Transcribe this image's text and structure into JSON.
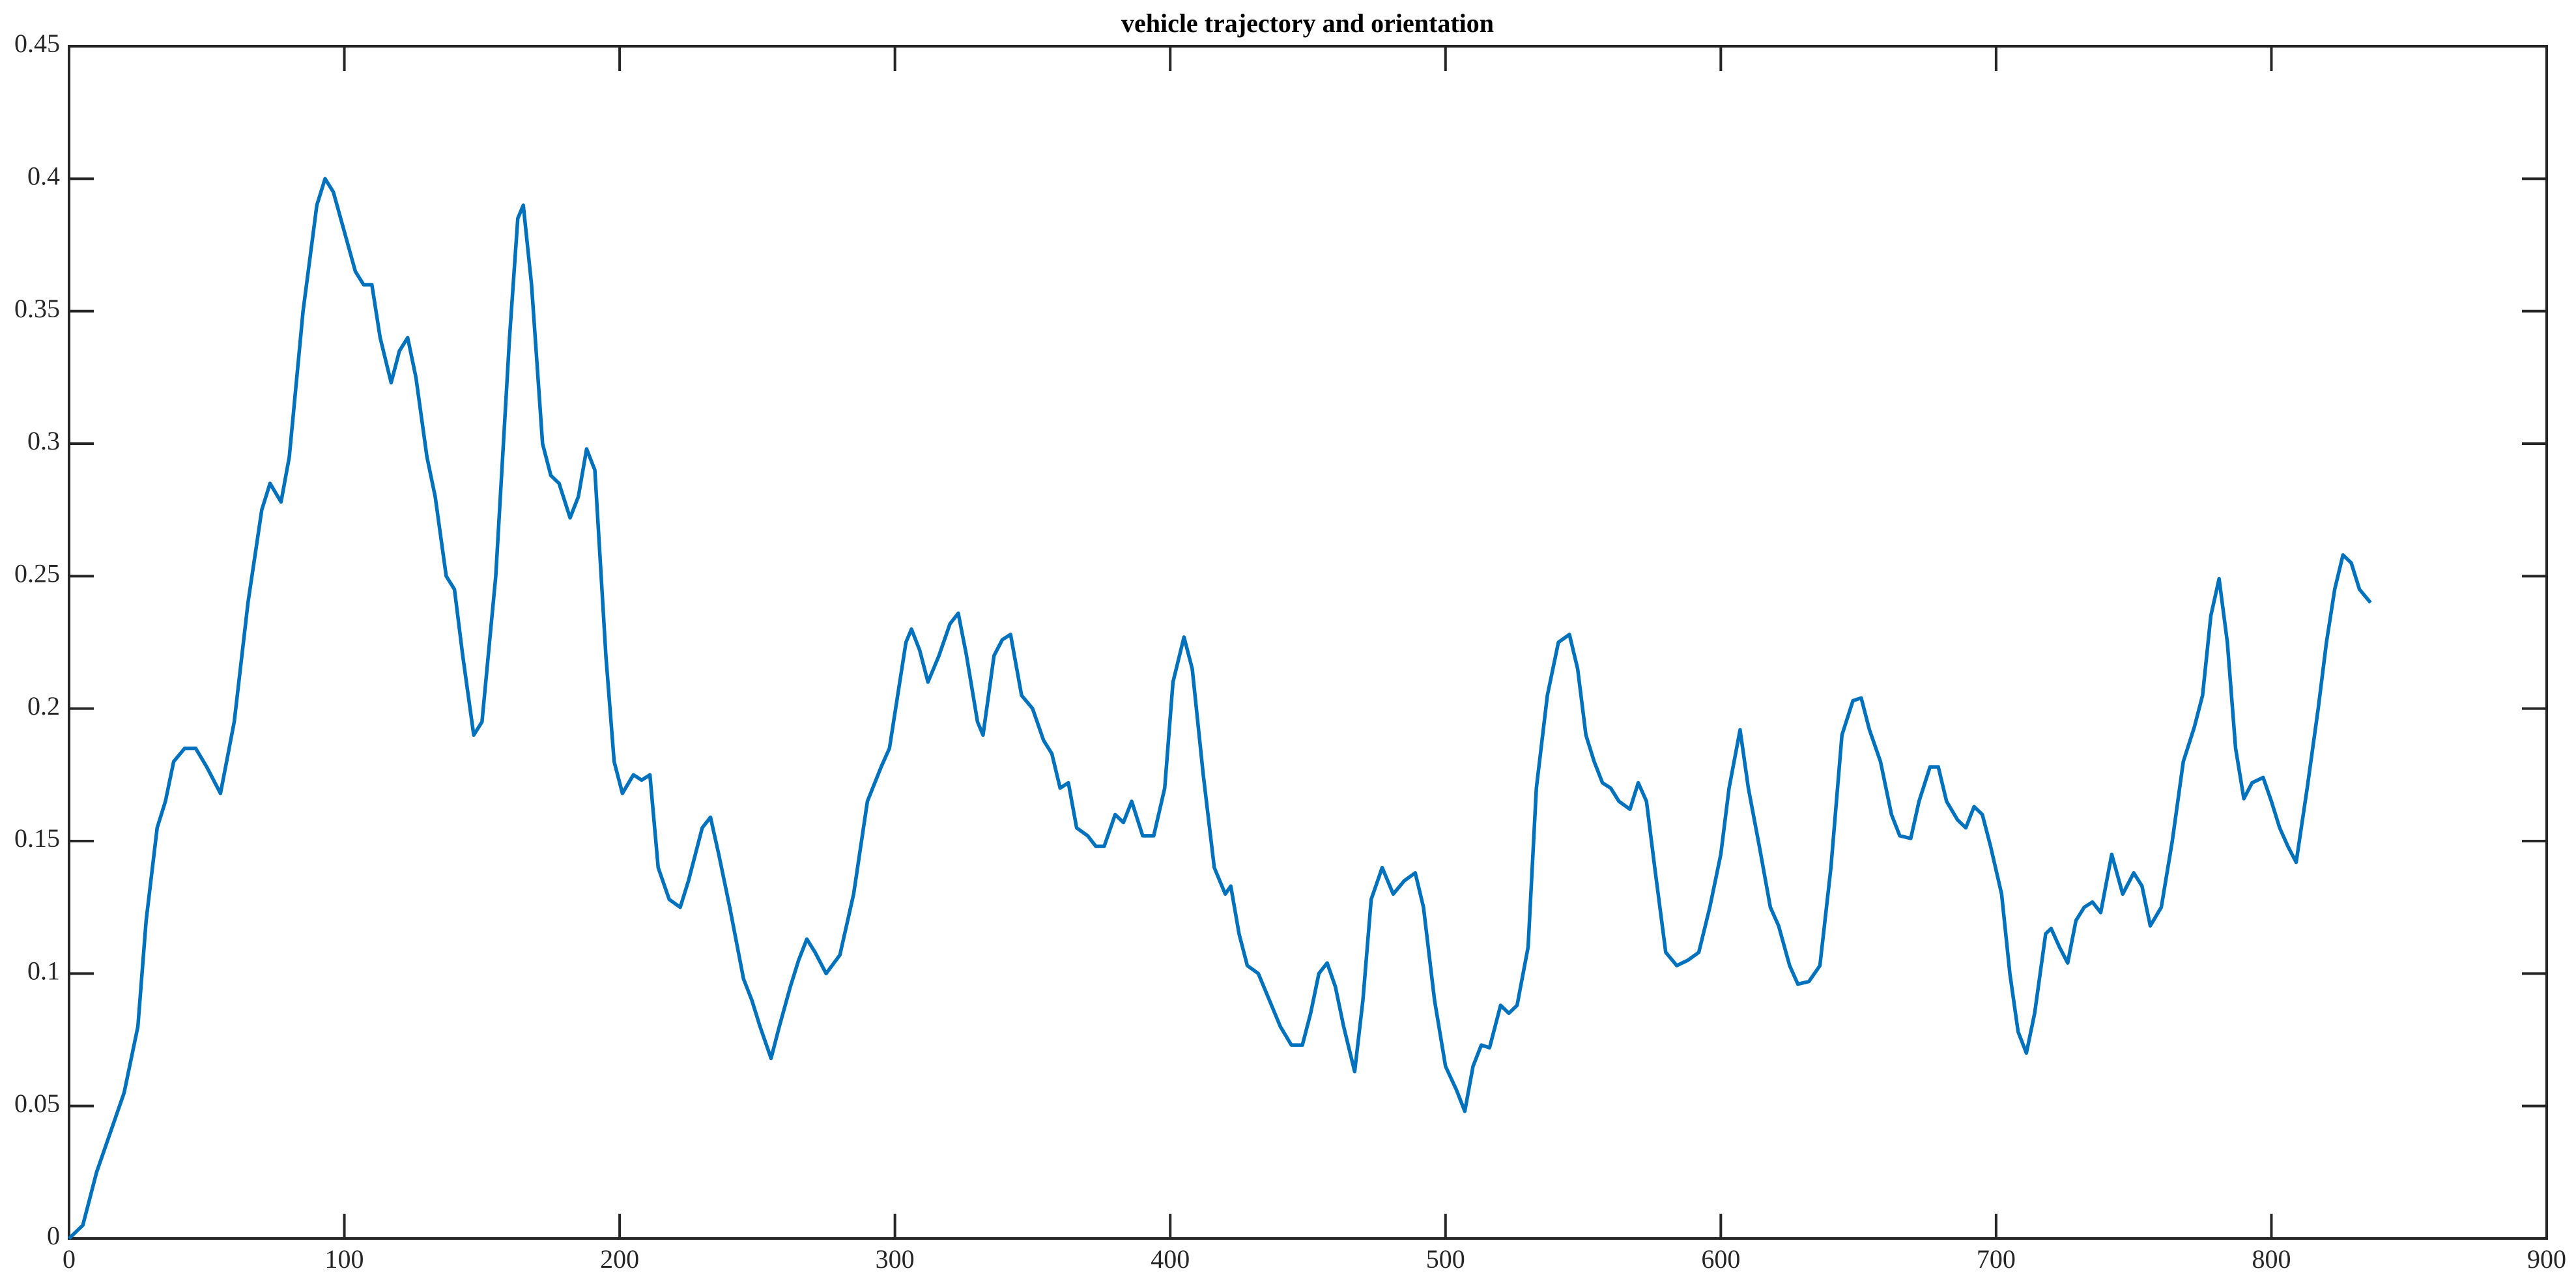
{
  "chart_data": {
    "type": "line",
    "title": "vehicle trajectory and orientation",
    "xlim": [
      0,
      900
    ],
    "xticks": [
      0,
      100,
      200,
      300,
      400,
      500,
      600,
      700,
      800,
      900
    ],
    "ylim": [
      0,
      0.45
    ],
    "yticks": [
      0,
      0.05,
      0.1,
      0.15,
      0.2,
      0.25,
      0.3,
      0.35,
      0.4,
      0.45
    ],
    "grid": false,
    "x": [
      0,
      5,
      10,
      15,
      20,
      25,
      28,
      32,
      35,
      38,
      42,
      46,
      50,
      55,
      60,
      65,
      70,
      73,
      77,
      80,
      85,
      90,
      93,
      96,
      100,
      104,
      107,
      110,
      113,
      117,
      120,
      123,
      126,
      130,
      133,
      137,
      140,
      143,
      147,
      150,
      155,
      160,
      163,
      165,
      168,
      172,
      175,
      178,
      182,
      185,
      188,
      191,
      195,
      198,
      201,
      205,
      208,
      211,
      214,
      218,
      222,
      225,
      230,
      233,
      236,
      240,
      245,
      248,
      251,
      255,
      258,
      262,
      265,
      268,
      271,
      275,
      280,
      285,
      290,
      295,
      298,
      301,
      304,
      306,
      309,
      312,
      316,
      320,
      323,
      326,
      330,
      332,
      336,
      339,
      342,
      346,
      350,
      354,
      357,
      360,
      363,
      366,
      370,
      373,
      376,
      380,
      383,
      386,
      390,
      394,
      398,
      401,
      405,
      408,
      412,
      416,
      420,
      422,
      425,
      428,
      432,
      436,
      440,
      444,
      448,
      451,
      454,
      457,
      460,
      463,
      467,
      470,
      473,
      477,
      481,
      485,
      489,
      492,
      496,
      500,
      504,
      507,
      510,
      513,
      516,
      520,
      523,
      526,
      530,
      533,
      537,
      541,
      545,
      548,
      551,
      554,
      557,
      560,
      563,
      567,
      570,
      573,
      576,
      580,
      584,
      588,
      592,
      596,
      600,
      603,
      607,
      610,
      614,
      618,
      621,
      625,
      628,
      632,
      636,
      640,
      644,
      648,
      651,
      654,
      658,
      662,
      665,
      669,
      672,
      676,
      679,
      682,
      686,
      689,
      692,
      695,
      698,
      702,
      705,
      708,
      711,
      714,
      718,
      720,
      723,
      726,
      729,
      732,
      735,
      738,
      742,
      746,
      750,
      753,
      756,
      760,
      764,
      768,
      772,
      775,
      778,
      781,
      784,
      787,
      790,
      793,
      797,
      800,
      803,
      806,
      809,
      813,
      817,
      820,
      823,
      826,
      829,
      832,
      836
    ],
    "series": [
      {
        "color": "#0072bd",
        "values": [
          0,
          0.005,
          0.025,
          0.04,
          0.055,
          0.08,
          0.12,
          0.155,
          0.165,
          0.18,
          0.185,
          0.185,
          0.178,
          0.168,
          0.195,
          0.24,
          0.275,
          0.285,
          0.278,
          0.295,
          0.35,
          0.39,
          0.4,
          0.395,
          0.38,
          0.365,
          0.36,
          0.36,
          0.34,
          0.323,
          0.335,
          0.34,
          0.325,
          0.295,
          0.28,
          0.25,
          0.245,
          0.22,
          0.19,
          0.195,
          0.25,
          0.34,
          0.385,
          0.39,
          0.36,
          0.3,
          0.288,
          0.285,
          0.272,
          0.28,
          0.298,
          0.29,
          0.22,
          0.18,
          0.168,
          0.175,
          0.173,
          0.175,
          0.14,
          0.128,
          0.125,
          0.135,
          0.155,
          0.159,
          0.145,
          0.125,
          0.098,
          0.09,
          0.08,
          0.068,
          0.08,
          0.095,
          0.105,
          0.113,
          0.108,
          0.1,
          0.107,
          0.13,
          0.165,
          0.178,
          0.185,
          0.205,
          0.225,
          0.23,
          0.222,
          0.21,
          0.22,
          0.232,
          0.236,
          0.22,
          0.195,
          0.19,
          0.22,
          0.226,
          0.228,
          0.205,
          0.2,
          0.188,
          0.183,
          0.17,
          0.172,
          0.155,
          0.152,
          0.148,
          0.148,
          0.16,
          0.157,
          0.165,
          0.152,
          0.152,
          0.17,
          0.21,
          0.227,
          0.215,
          0.175,
          0.14,
          0.13,
          0.133,
          0.115,
          0.103,
          0.1,
          0.09,
          0.08,
          0.073,
          0.073,
          0.085,
          0.1,
          0.104,
          0.095,
          0.08,
          0.063,
          0.09,
          0.128,
          0.14,
          0.13,
          0.135,
          0.138,
          0.125,
          0.09,
          0.065,
          0.056,
          0.048,
          0.065,
          0.073,
          0.072,
          0.088,
          0.085,
          0.088,
          0.11,
          0.17,
          0.205,
          0.225,
          0.228,
          0.215,
          0.19,
          0.18,
          0.172,
          0.17,
          0.165,
          0.162,
          0.172,
          0.165,
          0.14,
          0.108,
          0.103,
          0.105,
          0.108,
          0.125,
          0.145,
          0.17,
          0.192,
          0.17,
          0.148,
          0.125,
          0.118,
          0.103,
          0.096,
          0.097,
          0.103,
          0.14,
          0.19,
          0.203,
          0.204,
          0.192,
          0.18,
          0.16,
          0.152,
          0.151,
          0.165,
          0.178,
          0.178,
          0.165,
          0.158,
          0.155,
          0.163,
          0.16,
          0.148,
          0.13,
          0.1,
          0.078,
          0.07,
          0.085,
          0.115,
          0.117,
          0.11,
          0.104,
          0.12,
          0.125,
          0.127,
          0.123,
          0.145,
          0.13,
          0.138,
          0.133,
          0.118,
          0.125,
          0.15,
          0.18,
          0.193,
          0.205,
          0.235,
          0.249,
          0.225,
          0.185,
          0.166,
          0.172,
          0.174,
          0.165,
          0.155,
          0.148,
          0.142,
          0.17,
          0.2,
          0.225,
          0.245,
          0.258,
          0.255,
          0.245,
          0.24
        ]
      }
    ]
  }
}
